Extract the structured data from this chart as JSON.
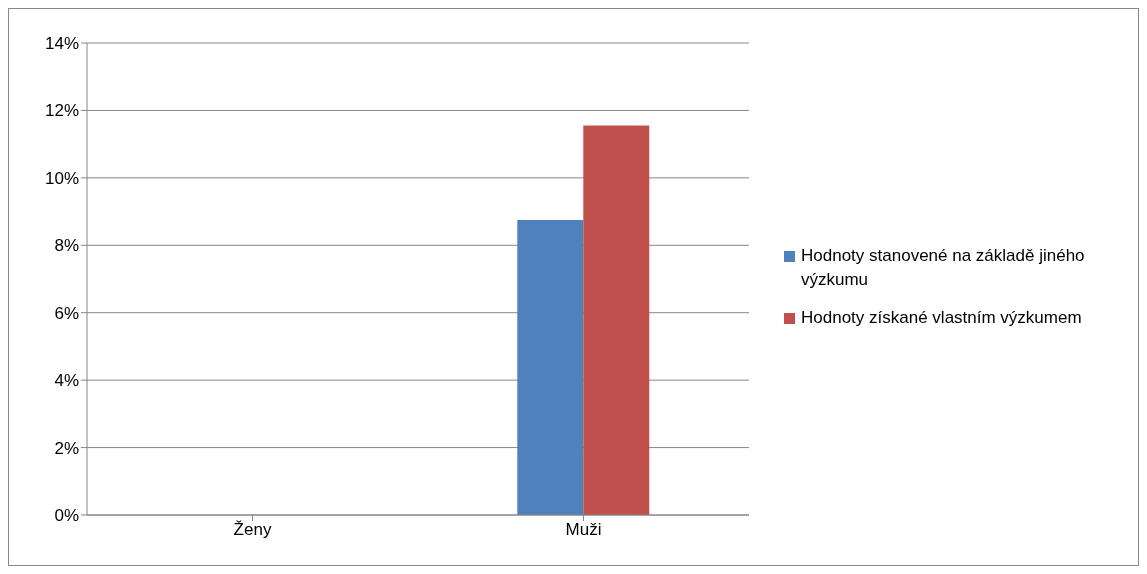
{
  "chart_data": {
    "type": "bar",
    "categories": [
      "Ženy",
      "Muži"
    ],
    "series": [
      {
        "name": "Hodnoty stanovené na základě jiného výzkumu",
        "color": "#4f81bd",
        "values": [
          0,
          8.75
        ]
      },
      {
        "name": "Hodnoty získané vlastním výzkumem",
        "color": "#c0504d",
        "values": [
          0,
          11.55
        ]
      }
    ],
    "ylim": [
      0,
      14
    ],
    "yticks": [
      {
        "value": 0,
        "label": "0%"
      },
      {
        "value": 2,
        "label": "2%"
      },
      {
        "value": 4,
        "label": "4%"
      },
      {
        "value": 6,
        "label": "6%"
      },
      {
        "value": 8,
        "label": "8%"
      },
      {
        "value": 10,
        "label": "10%"
      },
      {
        "value": 12,
        "label": "12%"
      },
      {
        "value": 14,
        "label": "14%"
      }
    ],
    "grid": "y",
    "legend": "right"
  }
}
